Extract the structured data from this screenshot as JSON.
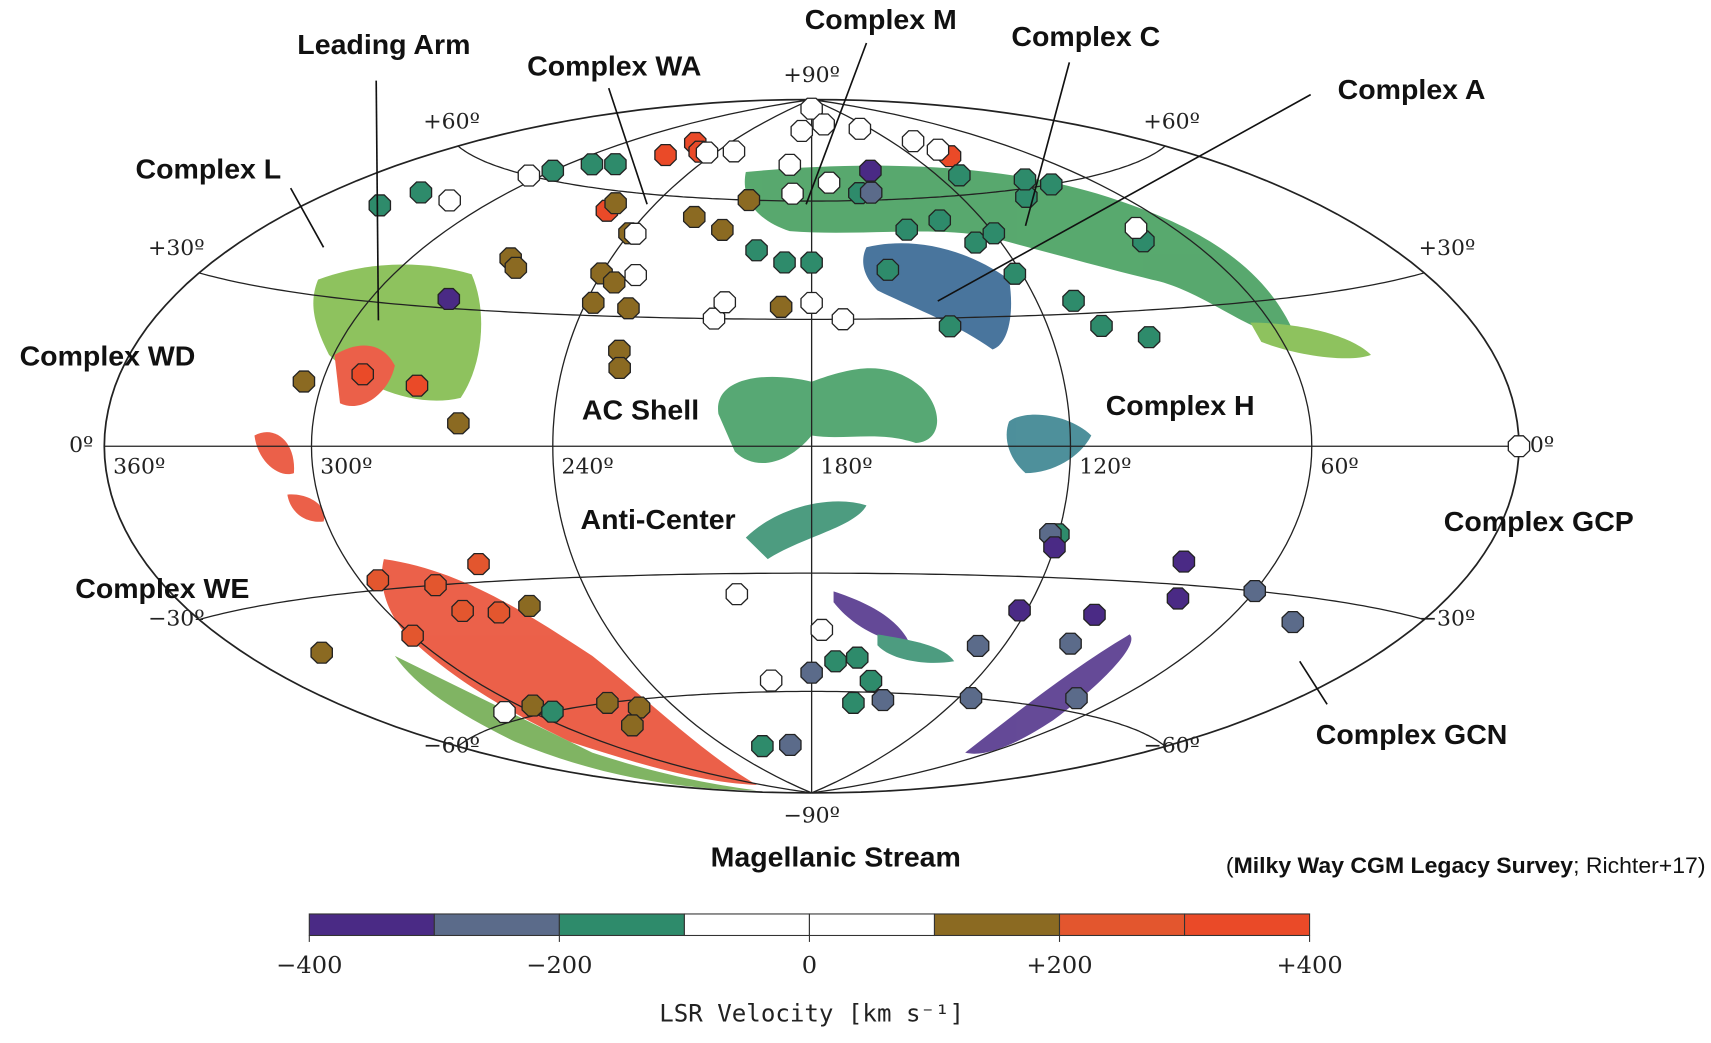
{
  "complexes": [
    "Leading Arm",
    "Complex WA",
    "Complex M",
    "Complex C",
    "Complex A",
    "Complex L",
    "Complex WD",
    "AC Shell",
    "Complex H",
    "Anti-Center",
    "Complex GCP",
    "Complex WE",
    "Complex GCN",
    "Magellanic Stream"
  ],
  "grid": {
    "lat_ticks": [
      {
        "value": 90,
        "label": "+90º"
      },
      {
        "value": 60,
        "label": "+60º"
      },
      {
        "value": 30,
        "label": "+30º"
      },
      {
        "value": 0,
        "label": "0º"
      },
      {
        "value": -30,
        "label": "−30º"
      },
      {
        "value": -60,
        "label": "−60º"
      },
      {
        "value": -90,
        "label": "−90º"
      }
    ],
    "lon_ticks": [
      {
        "value": 360,
        "label": "360º"
      },
      {
        "value": 300,
        "label": "300º"
      },
      {
        "value": 240,
        "label": "240º"
      },
      {
        "value": 180,
        "label": "180º"
      },
      {
        "value": 120,
        "label": "120º"
      },
      {
        "value": 60,
        "label": "60º"
      }
    ]
  },
  "absorbers": {
    "l": [
      262,
      265,
      250,
      255,
      100,
      290,
      275,
      295,
      280,
      300,
      278,
      268,
      265,
      270,
      266,
      255,
      240,
      240,
      235,
      238,
      228,
      227,
      226,
      205,
      222,
      210,
      188,
      305,
      263,
      258,
      335,
      295,
      265,
      255,
      270,
      335,
      330,
      290,
      300,
      280,
      197,
      188,
      180,
      160,
      148,
      135,
      128,
      120,
      110,
      95,
      85,
      78,
      75,
      110,
      106,
      95,
      145,
      122,
      158,
      172,
      165,
      158,
      162,
      120,
      215,
      292,
      155,
      122,
      60,
      40,
      128,
      100,
      115,
      75,
      180,
      195,
      150,
      278,
      150,
      85,
      80,
      120,
      122,
      100,
      180,
      190,
      165,
      130,
      192,
      188,
      172,
      105,
      100,
      245,
      230,
      305,
      315,
      238,
      230,
      205,
      180,
      172,
      200,
      177,
      195,
      310,
      72,
      0,
      203
    ],
    "b": [
      74,
      70,
      72,
      55,
      70,
      15,
      13,
      -28,
      -30,
      -40,
      -36,
      -37,
      -26,
      42,
      40,
      57,
      50,
      40,
      38,
      33,
      32,
      22,
      18,
      60,
      55,
      52,
      33,
      13,
      5,
      -36,
      -40,
      -58,
      -60,
      -62,
      -66,
      48,
      52,
      65,
      62,
      66,
      47,
      44,
      44,
      62,
      52,
      54,
      48,
      50,
      65,
      58,
      62,
      60,
      45,
      33,
      27,
      24,
      28,
      40,
      42,
      -52,
      -51,
      -57,
      -63,
      -20,
      -75,
      -60,
      62,
      -20,
      -30,
      -35,
      -47,
      -45,
      -60,
      -57,
      -55,
      -75,
      -62,
      32,
      68,
      -25,
      -33,
      -23,
      -38,
      -38,
      87,
      80,
      82,
      80,
      70,
      62,
      65,
      75,
      72,
      72,
      73,
      60,
      52,
      50,
      40,
      30,
      34,
      30,
      -35,
      -44,
      -57,
      -58,
      48,
      0,
      34
    ],
    "v": [
      350,
      350,
      350,
      350,
      350,
      350,
      350,
      250,
      250,
      250,
      250,
      250,
      250,
      150,
      150,
      150,
      150,
      150,
      150,
      150,
      150,
      150,
      150,
      150,
      150,
      150,
      150,
      150,
      150,
      150,
      150,
      150,
      150,
      150,
      150,
      -150,
      -150,
      -150,
      -150,
      -150,
      -150,
      -150,
      -150,
      -150,
      -150,
      -150,
      -150,
      -150,
      -150,
      -150,
      -150,
      -150,
      -150,
      -150,
      -150,
      -150,
      -150,
      -150,
      -150,
      -150,
      -150,
      -150,
      -150,
      -150,
      -150,
      -150,
      -250,
      -250,
      -250,
      -250,
      -250,
      -250,
      -250,
      -250,
      -250,
      -250,
      -250,
      -350,
      -350,
      -350,
      -350,
      -350,
      -350,
      -350,
      -50,
      50,
      -50,
      50,
      -50,
      50,
      -50,
      50,
      -50,
      50,
      -50,
      50,
      -50,
      50,
      -50,
      50,
      -50,
      50,
      -50,
      50,
      -50,
      50,
      -50,
      50,
      -50
    ]
  },
  "colorbar": {
    "bins": [
      -400,
      -300,
      -200,
      -100,
      0,
      100,
      200,
      300,
      400
    ],
    "colors": [
      "#4a2a85",
      "#5b6b8a",
      "#2e8b6b",
      "#ffffff",
      "#ffffff",
      "#8b6a22",
      "#e3562e",
      "#ea4a28"
    ],
    "ticks": [
      {
        "value": -400,
        "label": "−400"
      },
      {
        "value": -200,
        "label": "−200"
      },
      0,
      {
        "value": 200,
        "label": "+200"
      },
      {
        "value": 400,
        "label": "+400"
      }
    ],
    "label": "LSR Velocity [km s⁻¹]"
  },
  "credit": [
    "(",
    "Milky Way CGM Legacy Survey",
    "; Richter+17)"
  ]
}
